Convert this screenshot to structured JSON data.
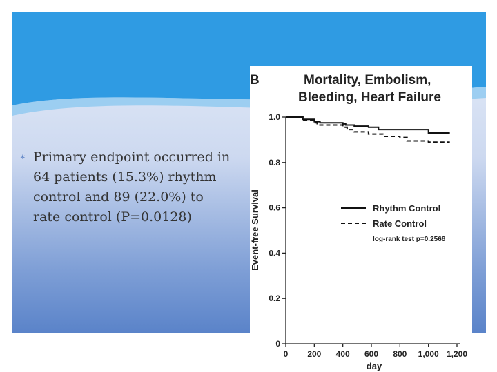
{
  "slide": {
    "bullet_marker": "∗",
    "bullet_lines": [
      "Primary endpoint occurred in",
      "64 patients (15.3%) rhythm",
      "control and  89 (22.0%) to",
      "rate control (P=0.0128)"
    ],
    "colors": {
      "header_blue": "#2f9be3",
      "panel_gradient_top": "#e9f0fa",
      "panel_gradient_bottom": "#5a83c9",
      "bullet_marker": "#5b82c4"
    }
  },
  "figure": {
    "panel_letter": "B",
    "title_lines": [
      "Mortality, Embolism,",
      "Bleeding, Heart Failure"
    ]
  },
  "chart_data": {
    "type": "line",
    "title": "Mortality, Embolism, Bleeding, Heart Failure",
    "xlabel": "day",
    "ylabel": "Event-free Survival",
    "xlim": [
      0,
      1200
    ],
    "ylim": [
      0,
      1.0
    ],
    "x_ticks": [
      0,
      200,
      400,
      600,
      800,
      1000,
      1200
    ],
    "x_tick_labels": [
      "0",
      "200",
      "400",
      "600",
      "800",
      "1,000",
      "1,200"
    ],
    "y_ticks": [
      0,
      0.2,
      0.4,
      0.6,
      0.8,
      1.0
    ],
    "y_tick_labels": [
      "0",
      "0.2",
      "0.4",
      "0.6",
      "0.8",
      "1.0"
    ],
    "grid": false,
    "legend_position": "middle-right",
    "annotation": "log-rank test p=0.2568",
    "series": [
      {
        "name": "Rhythm Control",
        "style": "solid",
        "x": [
          0,
          100,
          120,
          200,
          240,
          400,
          420,
          480,
          580,
          650,
          1000,
          1150
        ],
        "y": [
          1.0,
          1.0,
          0.99,
          0.98,
          0.975,
          0.97,
          0.965,
          0.96,
          0.955,
          0.945,
          0.93,
          0.93
        ]
      },
      {
        "name": "Rate Control",
        "style": "dashed",
        "x": [
          0,
          100,
          120,
          200,
          220,
          400,
          430,
          480,
          580,
          680,
          800,
          850,
          1000,
          1150
        ],
        "y": [
          1.0,
          1.0,
          0.985,
          0.975,
          0.965,
          0.955,
          0.945,
          0.935,
          0.925,
          0.915,
          0.91,
          0.895,
          0.89,
          0.89
        ]
      }
    ]
  }
}
